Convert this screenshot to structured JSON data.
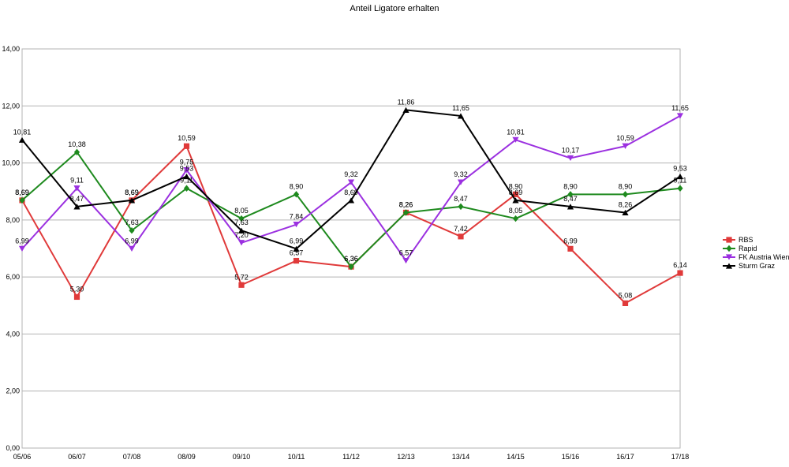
{
  "chart_data": {
    "type": "line",
    "title": "Anteil Ligatore erhalten",
    "xlabel": "",
    "ylabel": "",
    "ylim": [
      0,
      14
    ],
    "y_ticks": [
      "0,00",
      "2,00",
      "4,00",
      "6,00",
      "8,00",
      "10,00",
      "12,00",
      "14,00"
    ],
    "grid": "horizontal",
    "legend_position": "right",
    "categories": [
      "05/06",
      "06/07",
      "07/08",
      "08/09",
      "09/10",
      "10/11",
      "11/12",
      "12/13",
      "13/14",
      "14/15",
      "15/16",
      "16/17",
      "17/18"
    ],
    "series": [
      {
        "name": "RBS",
        "color": "#e03a3a",
        "marker": "square",
        "values": [
          8.69,
          5.3,
          8.69,
          10.59,
          5.72,
          6.57,
          6.36,
          8.26,
          7.42,
          8.9,
          6.99,
          5.08,
          6.14
        ],
        "labels": [
          "8,69",
          "5,30",
          "8,69",
          "10,59",
          "5,72",
          "6,57",
          "6,36",
          "8,26",
          "7,42",
          "8,90",
          "6,99",
          "5,08",
          "6,14"
        ]
      },
      {
        "name": "Rapid",
        "color": "#1e8a1e",
        "marker": "diamond",
        "values": [
          8.69,
          10.38,
          7.63,
          9.11,
          8.05,
          8.9,
          6.36,
          8.26,
          8.47,
          8.05,
          8.9,
          8.9,
          9.11
        ],
        "labels": [
          "8,69",
          "10,38",
          "7,63",
          "9,11",
          "8,05",
          "8,90",
          "6,36",
          "8,26",
          "8,47",
          "8,05",
          "8,90",
          "8,90",
          "9,11"
        ]
      },
      {
        "name": "FK Austria Wien",
        "color": "#9b30e0",
        "marker": "triangle-down",
        "values": [
          6.99,
          9.11,
          6.99,
          9.75,
          7.2,
          7.84,
          9.32,
          6.57,
          9.32,
          10.81,
          10.17,
          10.59,
          11.65
        ],
        "labels": [
          "6,99",
          "9,11",
          "6,99",
          "9,75",
          "7,20",
          "7,84",
          "9,32",
          "6,57",
          "9,32",
          "10,81",
          "10,17",
          "10,59",
          "11,65"
        ]
      },
      {
        "name": "Sturm Graz",
        "color": "#000000",
        "marker": "triangle-up",
        "values": [
          10.81,
          8.47,
          8.69,
          9.53,
          7.63,
          6.99,
          8.69,
          11.86,
          11.65,
          8.69,
          8.47,
          8.26,
          9.53
        ],
        "labels": [
          "10,81",
          "8,47",
          "8,69",
          "9,53",
          "7,63",
          "6,99",
          "8,69",
          "11,86",
          "11,65",
          "8,69",
          "8,47",
          "8,26",
          "9,53"
        ]
      }
    ]
  }
}
